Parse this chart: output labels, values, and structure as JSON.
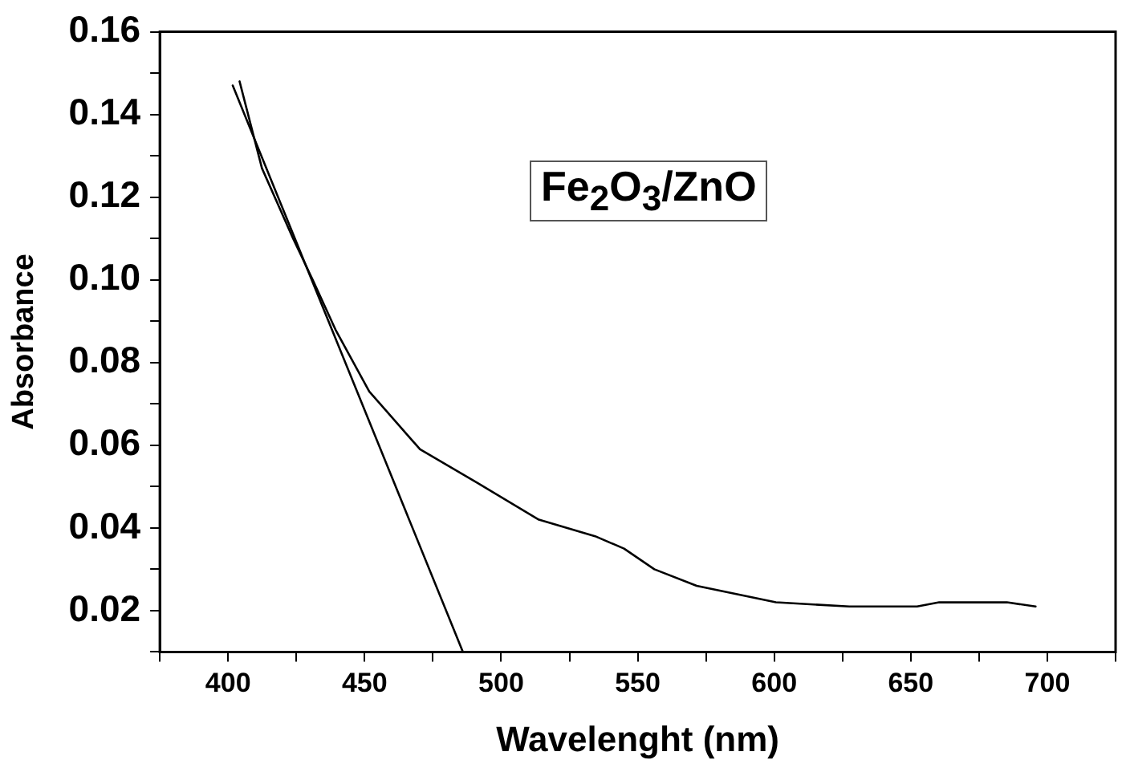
{
  "chart_data": {
    "type": "line",
    "xlabel": "Wavelenght (nm)",
    "ylabel": "Absorbance",
    "annotations": [
      "Fe$_{2}$O$_{3}$/ZnO"
    ],
    "xlim": [
      375,
      725
    ],
    "ylim": [
      0.01,
      0.16
    ],
    "xticks": [
      {
        "value": 375,
        "label": null
      },
      400,
      {
        "value": 425,
        "label": null
      },
      450,
      {
        "value": 475,
        "label": null
      },
      500,
      {
        "value": 525,
        "label": null
      },
      550,
      {
        "value": 575,
        "label": null
      },
      600,
      {
        "value": 625,
        "label": null
      },
      650,
      {
        "value": 675,
        "label": null
      },
      700,
      {
        "value": 725,
        "label": null
      }
    ],
    "yticks": [
      {
        "value": 0.01,
        "label": null
      },
      {
        "value": 0.02,
        "label": "0.02"
      },
      {
        "value": 0.03,
        "label": null
      },
      {
        "value": 0.04,
        "label": "0.04"
      },
      {
        "value": 0.05,
        "label": null
      },
      {
        "value": 0.06,
        "label": "0.06"
      },
      {
        "value": 0.07,
        "label": null
      },
      {
        "value": 0.08,
        "label": "0.08"
      },
      {
        "value": 0.09,
        "label": null
      },
      {
        "value": 0.1,
        "label": "0.10"
      },
      {
        "value": 0.11,
        "label": null
      },
      {
        "value": 0.12,
        "label": "0.12"
      },
      {
        "value": 0.13,
        "label": null
      },
      {
        "value": 0.14,
        "label": "0.14"
      },
      {
        "value": 0.15,
        "label": null
      },
      {
        "value": 0.16,
        "label": "0.16"
      }
    ],
    "grid": false,
    "legend": false,
    "marker": "none",
    "line_style": "solid",
    "series": [
      {
        "color": "#000000",
        "x": [
          404.2,
          412.4,
          423.8,
          431,
          439.3,
          451.7,
          470.3,
          491,
          513.8,
          534.4,
          545,
          556.1,
          571.6,
          600.6,
          627.5,
          633.7,
          652.3,
          660.4,
          685.2,
          695.7
        ],
        "values": [
          0.148,
          0.127,
          0.11,
          0.1,
          0.088,
          0.073,
          0.059,
          0.051,
          0.042,
          0.038,
          0.035,
          0.03,
          0.026,
          0.022,
          0.021,
          0.021,
          0.021,
          0.022,
          0.022,
          0.021
        ]
      },
      {
        "color": "#000000",
        "x": [
          401.7,
          486
        ],
        "values": [
          0.147,
          0.01
        ]
      }
    ]
  }
}
